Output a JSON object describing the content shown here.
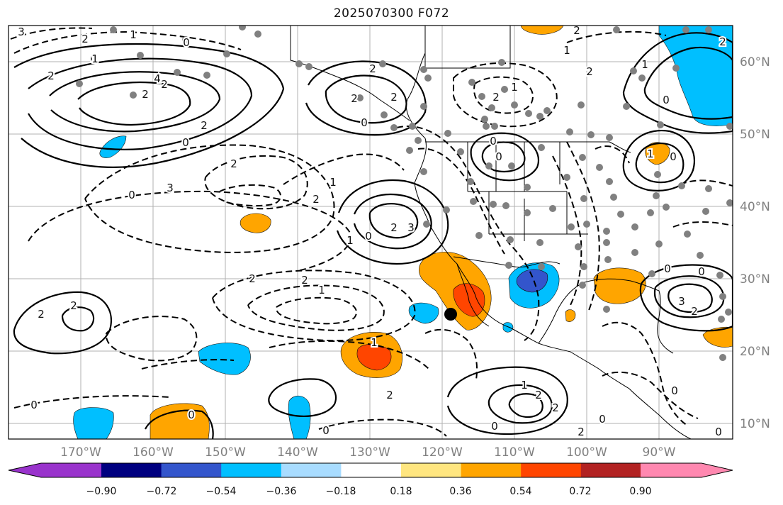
{
  "title": "2025070300 F072",
  "lat_labels": [
    "60°N",
    "50°N",
    "40°N",
    "30°N",
    "20°N",
    "10°N"
  ],
  "lon_labels": [
    "170°W",
    "160°W",
    "150°W",
    "140°W",
    "130°W",
    "120°W",
    "110°W",
    "100°W",
    "90°W"
  ],
  "colorbar": {
    "ticks": [
      "−0.90",
      "−0.72",
      "−0.54",
      "−0.36",
      "−0.18",
      "0.18",
      "0.36",
      "0.54",
      "0.72",
      "0.90"
    ],
    "colors": [
      "#9933cc",
      "#000080",
      "#3355cc",
      "#00bfff",
      "#a8dcff",
      "#ffffff",
      "#ffe680",
      "#ffa500",
      "#ff4500",
      "#b22222",
      "#ff88b0"
    ]
  },
  "contour_labels": [
    "0",
    "2",
    "3",
    "2",
    "4",
    "0",
    "1",
    "2",
    "2",
    "0",
    "2",
    "1",
    "2",
    "0",
    "2",
    "2",
    "3",
    "2",
    "2",
    "3",
    "0",
    "1",
    "2",
    "0",
    "1",
    "2",
    "2",
    "1",
    "2",
    "2",
    "0",
    "1",
    "2",
    "0",
    "0",
    "0",
    "2",
    "2",
    "0",
    "1",
    "2",
    "0",
    "0",
    "1",
    "2",
    "0",
    "0",
    "2",
    "1",
    "2",
    "1",
    "0",
    "0",
    "3",
    "2",
    "0",
    "2",
    "1",
    "0"
  ]
}
